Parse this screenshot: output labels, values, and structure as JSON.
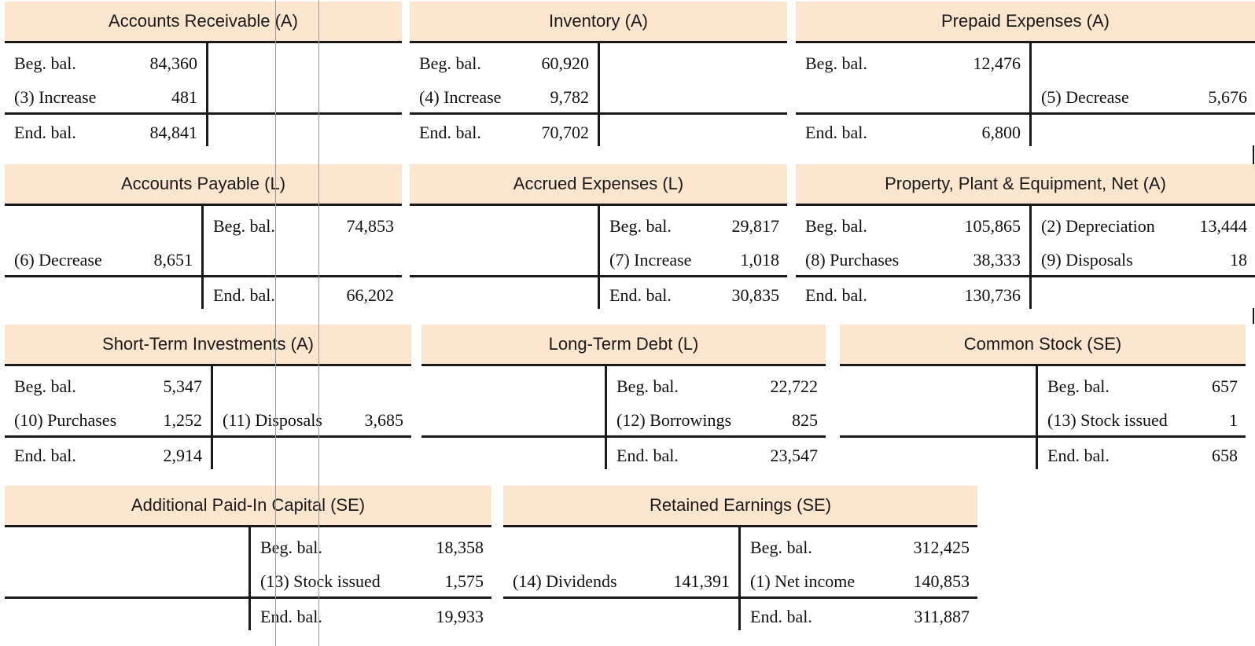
{
  "accounts": [
    {
      "title": "Accounts Receivable (A)",
      "rows": [
        {
          "left_label": "Beg. bal.",
          "left_amount": "84,360",
          "right_label": "",
          "right_amount": ""
        },
        {
          "left_label": "(3) Increase",
          "left_amount": "481",
          "right_label": "",
          "right_amount": ""
        },
        {
          "left_label": "End. bal.",
          "left_amount": "84,841",
          "right_label": "",
          "right_amount": ""
        }
      ]
    },
    {
      "title": "Inventory (A)",
      "rows": [
        {
          "left_label": "Beg. bal.",
          "left_amount": "60,920",
          "right_label": "",
          "right_amount": ""
        },
        {
          "left_label": "(4) Increase",
          "left_amount": "9,782",
          "right_label": "",
          "right_amount": ""
        },
        {
          "left_label": "End. bal.",
          "left_amount": "70,702",
          "right_label": "",
          "right_amount": ""
        }
      ]
    },
    {
      "title": "Prepaid Expenses (A)",
      "rows": [
        {
          "left_label": "Beg. bal.",
          "left_amount": "12,476",
          "right_label": "",
          "right_amount": ""
        },
        {
          "left_label": "",
          "left_amount": "",
          "right_label": "(5) Decrease",
          "right_amount": "5,676"
        },
        {
          "left_label": "End. bal.",
          "left_amount": "6,800",
          "right_label": "",
          "right_amount": ""
        }
      ]
    },
    {
      "title": "Accounts Payable (L)",
      "rows": [
        {
          "left_label": "",
          "left_amount": "",
          "right_label": "Beg. bal.",
          "right_amount": "74,853"
        },
        {
          "left_label": "(6) Decrease",
          "left_amount": "8,651",
          "right_label": "",
          "right_amount": ""
        },
        {
          "left_label": "",
          "left_amount": "",
          "right_label": "End. bal.",
          "right_amount": "66,202"
        }
      ]
    },
    {
      "title": "Accrued Expenses (L)",
      "rows": [
        {
          "left_label": "",
          "left_amount": "",
          "right_label": "Beg. bal.",
          "right_amount": "29,817"
        },
        {
          "left_label": "",
          "left_amount": "",
          "right_label": "(7) Increase",
          "right_amount": "1,018"
        },
        {
          "left_label": "",
          "left_amount": "",
          "right_label": "End. bal.",
          "right_amount": "30,835"
        }
      ]
    },
    {
      "title": "Property, Plant & Equipment, Net (A)",
      "rows": [
        {
          "left_label": "Beg. bal.",
          "left_amount": "105,865",
          "right_label": "(2) Depreciation",
          "right_amount": "13,444"
        },
        {
          "left_label": "(8) Purchases",
          "left_amount": "38,333",
          "right_label": "(9) Disposals",
          "right_amount": "18"
        },
        {
          "left_label": "End. bal.",
          "left_amount": "130,736",
          "right_label": "",
          "right_amount": ""
        }
      ]
    },
    {
      "title": "Short-Term Investments (A)",
      "rows": [
        {
          "left_label": "Beg. bal.",
          "left_amount": "5,347",
          "right_label": "",
          "right_amount": ""
        },
        {
          "left_label": "(10) Purchases",
          "left_amount": "1,252",
          "right_label": "(11) Disposals",
          "right_amount": "3,685"
        },
        {
          "left_label": "End. bal.",
          "left_amount": "2,914",
          "right_label": "",
          "right_amount": ""
        }
      ]
    },
    {
      "title": "Long-Term Debt (L)",
      "rows": [
        {
          "left_label": "",
          "left_amount": "",
          "right_label": "Beg. bal.",
          "right_amount": "22,722"
        },
        {
          "left_label": "",
          "left_amount": "",
          "right_label": "(12) Borrowings",
          "right_amount": "825"
        },
        {
          "left_label": "",
          "left_amount": "",
          "right_label": "End. bal.",
          "right_amount": "23,547"
        }
      ]
    },
    {
      "title": "Common Stock (SE)",
      "rows": [
        {
          "left_label": "",
          "left_amount": "",
          "right_label": "Beg. bal.",
          "right_amount": "657"
        },
        {
          "left_label": "",
          "left_amount": "",
          "right_label": "(13) Stock issued",
          "right_amount": "1"
        },
        {
          "left_label": "",
          "left_amount": "",
          "right_label": "End. bal.",
          "right_amount": "658"
        }
      ]
    },
    {
      "title": "Additional Paid-In Capital (SE)",
      "rows": [
        {
          "left_label": "",
          "left_amount": "",
          "right_label": "Beg. bal.",
          "right_amount": "18,358"
        },
        {
          "left_label": "",
          "left_amount": "",
          "right_label": "(13) Stock issued",
          "right_amount": "1,575"
        },
        {
          "left_label": "",
          "left_amount": "",
          "right_label": "End. bal.",
          "right_amount": "19,933"
        }
      ]
    },
    {
      "title": "Retained Earnings (SE)",
      "rows": [
        {
          "left_label": "",
          "left_amount": "",
          "right_label": "Beg. bal.",
          "right_amount": "312,425"
        },
        {
          "left_label": "(14) Dividends",
          "left_amount": "141,391",
          "right_label": "(1) Net income",
          "right_amount": "140,853"
        },
        {
          "left_label": "",
          "left_amount": "",
          "right_label": "End. bal.",
          "right_amount": "311,887"
        }
      ]
    }
  ]
}
